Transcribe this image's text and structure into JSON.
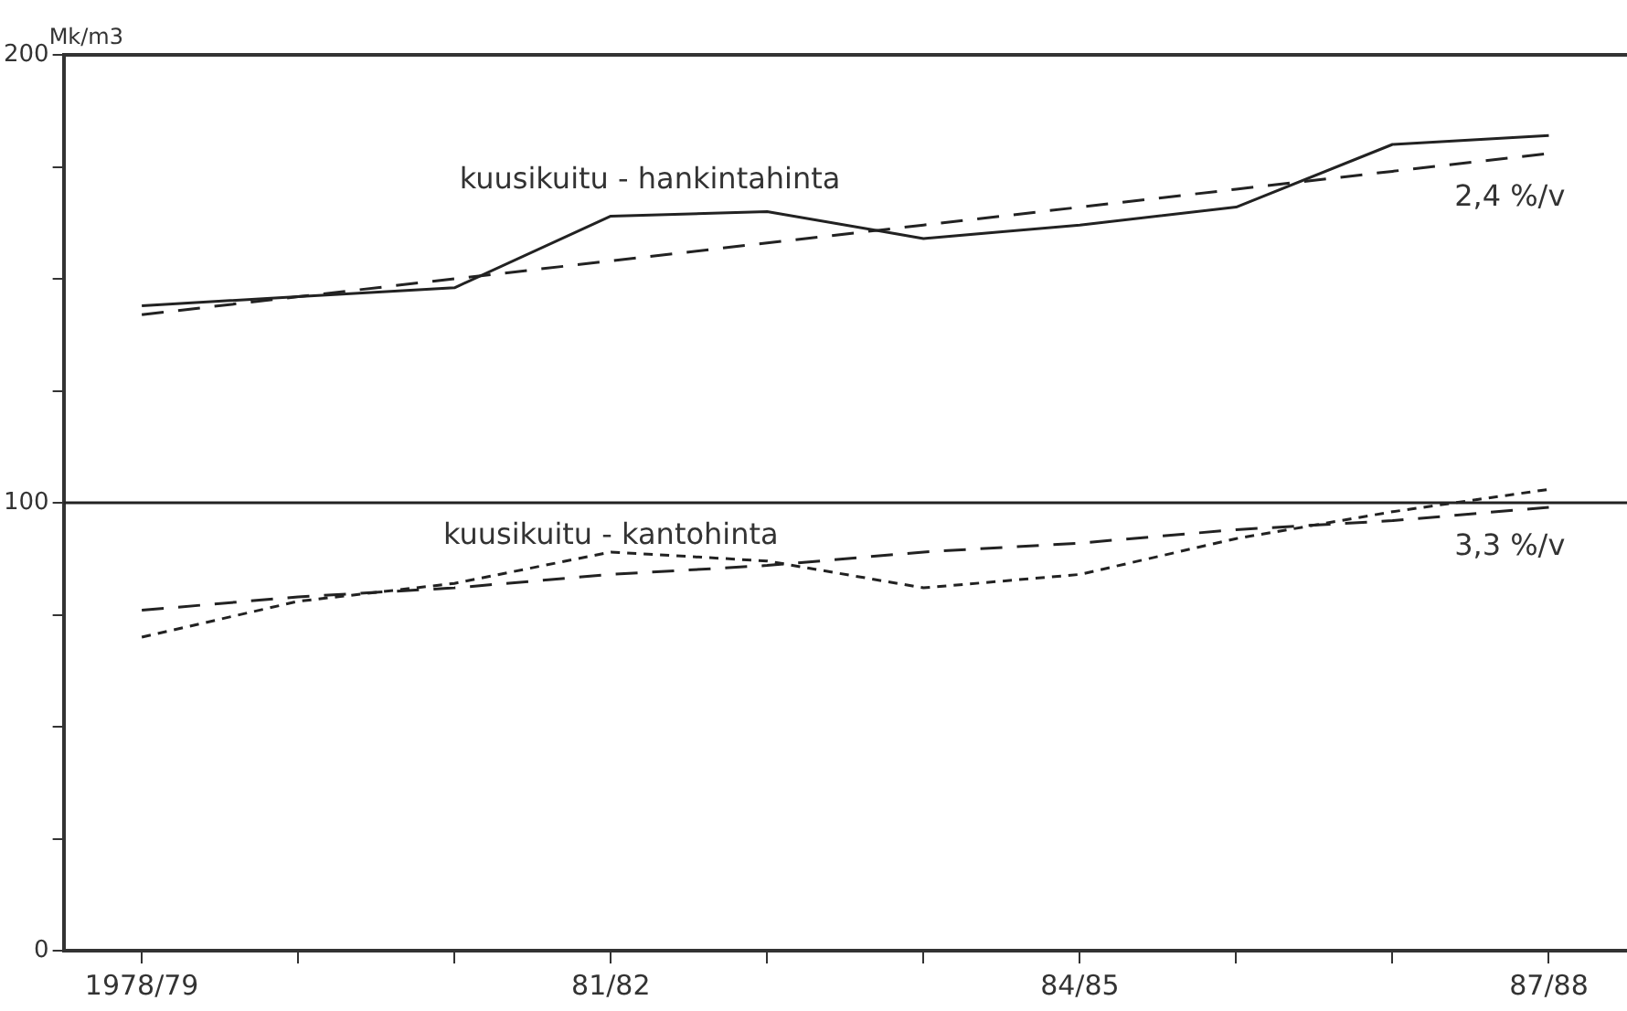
{
  "chart_data": {
    "type": "line",
    "ylabel": "Mk/m3",
    "categories": [
      "1978/79",
      null,
      null,
      "81/82",
      null,
      null,
      "84/85",
      null,
      null,
      "87/88"
    ],
    "series": [
      {
        "name": "kuusikuitu - hankintahinta",
        "color": "#222222",
        "line_style": "solid",
        "values": [
          144,
          146,
          148,
          164,
          165,
          159,
          162,
          166,
          180,
          182
        ]
      },
      {
        "name": "2,4 %/v",
        "color": "#222222",
        "line_style": "dashed",
        "values": [
          142,
          146,
          150,
          154,
          158,
          162,
          166,
          170,
          174,
          178
        ]
      },
      {
        "name": "kuusikuitu - kantohinta",
        "color": "#222222",
        "line_style": "dotted",
        "values": [
          70,
          78,
          82,
          89,
          87,
          81,
          84,
          92,
          98,
          103
        ]
      },
      {
        "name": "3,3 %/v",
        "color": "#222222",
        "line_style": "dashed",
        "values": [
          76,
          79,
          81,
          84,
          86,
          89,
          91,
          94,
          96,
          99
        ]
      }
    ],
    "ylim": [
      0,
      200
    ],
    "yticks": [
      0,
      {
        "value": 25,
        "label": null
      },
      {
        "value": 50,
        "label": null
      },
      {
        "value": 75,
        "label": null
      },
      100,
      {
        "value": 125,
        "label": null
      },
      {
        "value": 150,
        "label": null
      },
      {
        "value": 175,
        "label": null
      },
      200
    ],
    "ref_lines": [
      {
        "axis": "y",
        "value": 100,
        "color": "#222222"
      }
    ],
    "marker": "none",
    "grid": false,
    "legend": false
  }
}
